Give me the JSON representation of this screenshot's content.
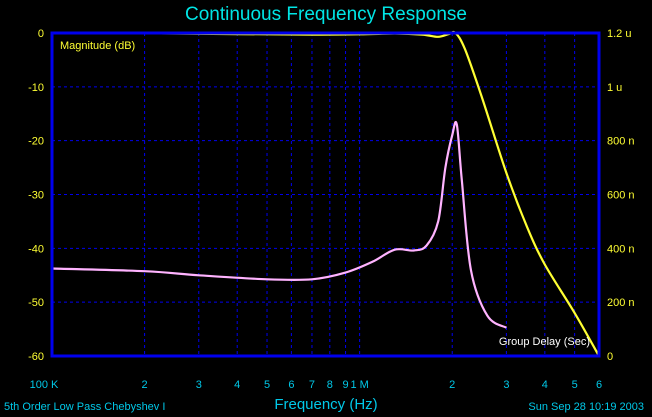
{
  "chart_data": {
    "type": "line",
    "title": "Continuous Frequency Response",
    "xlabel": "Frequency (Hz)",
    "x_scale": "log",
    "xlim": [
      100000,
      6000000
    ],
    "x_ticks": [
      {
        "value": 100000,
        "label": "100 K"
      },
      {
        "value": 200000,
        "label": "2"
      },
      {
        "value": 300000,
        "label": "3"
      },
      {
        "value": 400000,
        "label": "4"
      },
      {
        "value": 500000,
        "label": "5"
      },
      {
        "value": 600000,
        "label": "6"
      },
      {
        "value": 700000,
        "label": "7"
      },
      {
        "value": 800000,
        "label": "8"
      },
      {
        "value": 900000,
        "label": "9"
      },
      {
        "value": 1000000,
        "label": "1 M"
      },
      {
        "value": 2000000,
        "label": "2"
      },
      {
        "value": 3000000,
        "label": "3"
      },
      {
        "value": 4000000,
        "label": "4"
      },
      {
        "value": 5000000,
        "label": "5"
      },
      {
        "value": 6000000,
        "label": "6"
      }
    ],
    "y_left": {
      "label": "Magnitude (dB)",
      "range": [
        -60,
        0
      ],
      "ticks": [
        {
          "value": 0,
          "label": "0"
        },
        {
          "value": -10,
          "label": "-10"
        },
        {
          "value": -20,
          "label": "-20"
        },
        {
          "value": -30,
          "label": "-30"
        },
        {
          "value": -40,
          "label": "-40"
        },
        {
          "value": -50,
          "label": "-50"
        },
        {
          "value": -60,
          "label": "-60"
        }
      ]
    },
    "y_right": {
      "label": "Group Delay (Sec)",
      "range": [
        0,
        1.2e-06
      ],
      "ticks": [
        {
          "value": 0,
          "label": "0"
        },
        {
          "value": 2e-07,
          "label": "200 n"
        },
        {
          "value": 4e-07,
          "label": "400 n"
        },
        {
          "value": 6e-07,
          "label": "600 n"
        },
        {
          "value": 8e-07,
          "label": "800 n"
        },
        {
          "value": 1e-06,
          "label": "1 u"
        },
        {
          "value": 1.2e-06,
          "label": "1.2 u"
        }
      ]
    },
    "grid": true,
    "series": [
      {
        "name": "Magnitude (dB)",
        "axis": "left",
        "color": "#ffff33",
        "x": [
          100000,
          200000,
          400000,
          700000,
          1000000,
          1300000,
          1600000,
          1800000,
          1950000,
          2050000,
          2200000,
          2500000,
          3000000,
          3500000,
          4000000,
          5000000,
          6000000
        ],
        "y": [
          0,
          -0.05,
          -0.2,
          -0.3,
          -0.25,
          -0.1,
          -0.3,
          -0.7,
          -0.2,
          0,
          -3,
          -12,
          -26,
          -36,
          -43,
          -52,
          -60
        ]
      },
      {
        "name": "Group Delay (Sec)",
        "axis": "right",
        "color": "#ffb3ff",
        "x": [
          100000,
          200000,
          300000,
          500000,
          700000,
          900000,
          1100000,
          1300000,
          1500000,
          1650000,
          1800000,
          1900000,
          2000000,
          2070000,
          2150000,
          2300000,
          2600000,
          3000000
        ],
        "y": [
          3.25e-07,
          3.15e-07,
          3e-07,
          2.85e-07,
          2.85e-07,
          3.1e-07,
          3.5e-07,
          3.95e-07,
          3.92e-07,
          4.1e-07,
          5e-07,
          7e-07,
          8.2e-07,
          8.6e-07,
          6.5e-07,
          3.2e-07,
          1.5e-07,
          1.05e-07
        ]
      }
    ]
  },
  "footer": {
    "left": "5th Order Low Pass Chebyshev I",
    "right": "Sun Sep 28 10:19 2003"
  },
  "colors": {
    "background": "#000000",
    "frame": "#0000ee",
    "grid": "#0000ee",
    "tick_labels": "#ffff33",
    "title": "#00e5e5"
  }
}
